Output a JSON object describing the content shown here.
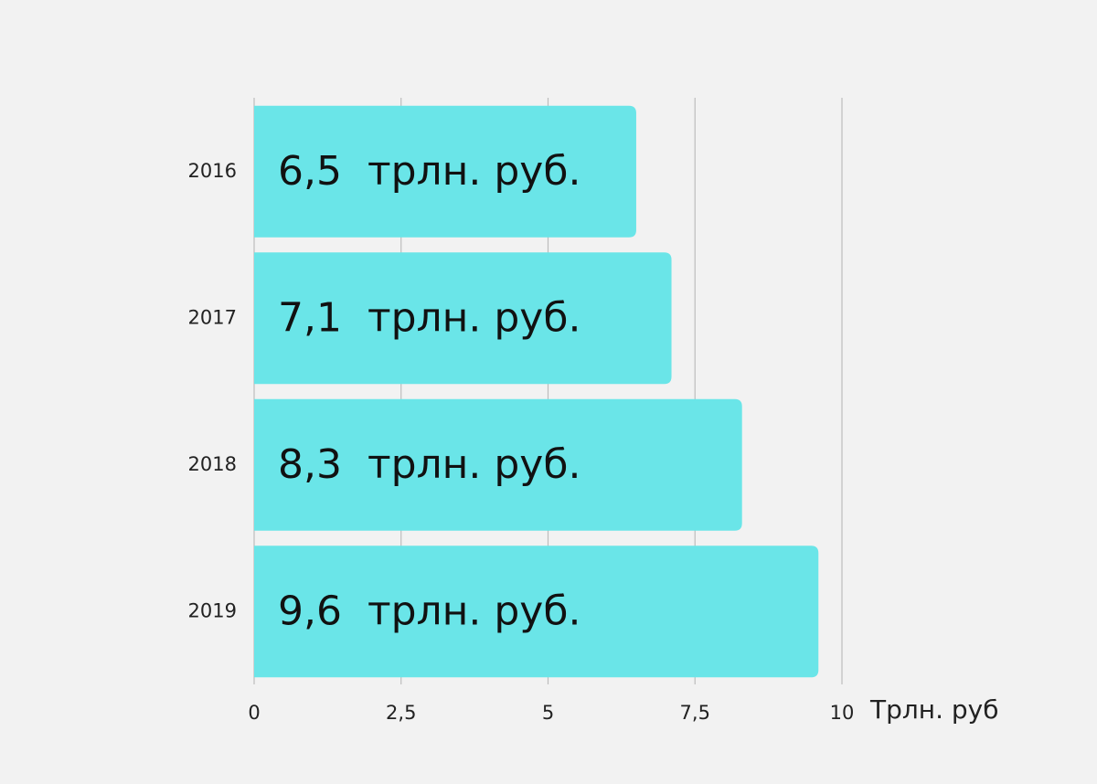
{
  "chart_data": {
    "type": "hbar",
    "categories": [
      "2016",
      "2017",
      "2018",
      "2019"
    ],
    "values": [
      6.5,
      7.1,
      8.3,
      9.6
    ],
    "value_labels": [
      "6,5  трлн. руб.",
      "7,1  трлн. руб.",
      "8,3  трлн. руб.",
      "9,6  трлн. руб."
    ],
    "color": "#6ae5e8",
    "xlabel": "Трлн. руб",
    "xlim": [
      0,
      10
    ],
    "xticks": [
      0,
      {
        "value": 2.5,
        "label": "2,5"
      },
      5,
      {
        "value": 7.5,
        "label": "7,5"
      },
      10
    ],
    "grid": true
  }
}
